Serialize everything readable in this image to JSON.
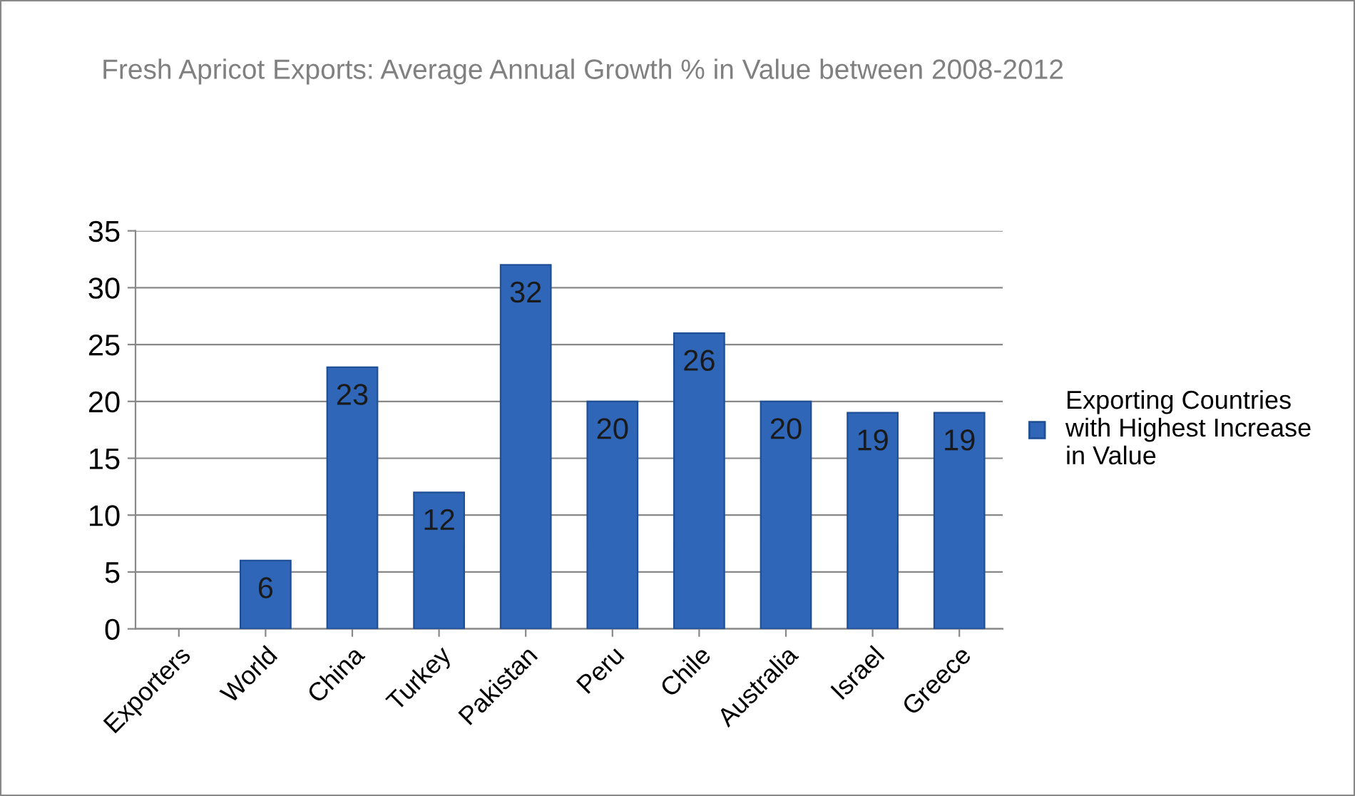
{
  "chart_data": {
    "type": "bar",
    "title": "Fresh Apricot Exports: Average Annual Growth % in Value between 2008-2012",
    "categories": [
      "Exporters",
      "World",
      "China",
      "Turkey",
      "Pakistan",
      "Peru",
      "Chile",
      "Australia",
      "Israel",
      "Greece"
    ],
    "series": [
      {
        "name": "Exporting Countries with Highest Increase in Value",
        "color": "#2f66b8",
        "values": [
          null,
          6,
          23,
          12,
          32,
          20,
          26,
          20,
          19,
          19
        ]
      }
    ],
    "ylim": [
      0,
      35
    ],
    "yticks": [
      0,
      5,
      10,
      15,
      20,
      25,
      30,
      35
    ],
    "grid": "y",
    "legend": "right",
    "data_labels": true
  }
}
